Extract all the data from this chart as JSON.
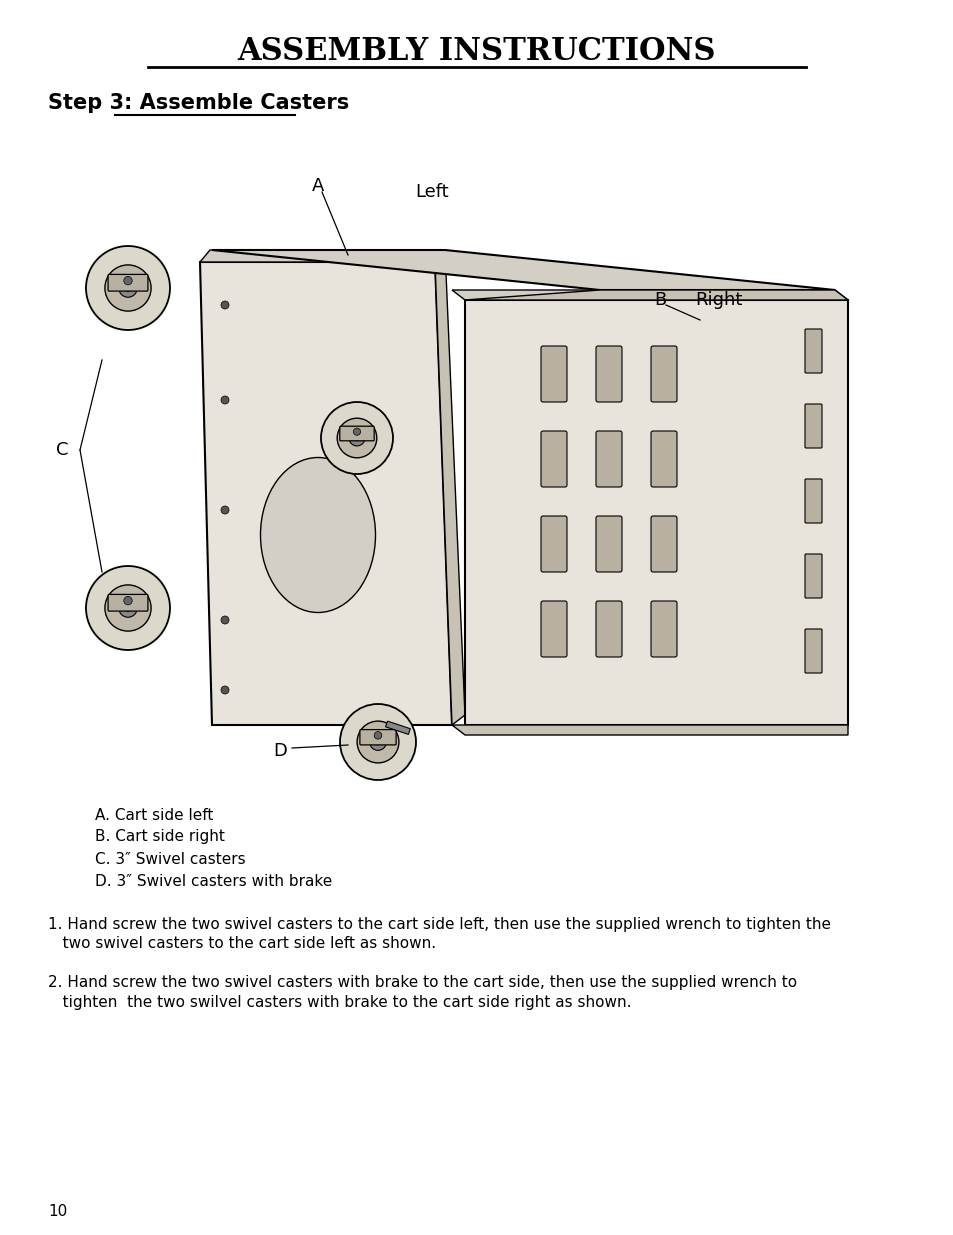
{
  "title": "ASSEMBLY INSTRUCTIONS",
  "step_heading": "Step 3: Assemble Casters",
  "parts_list": [
    "A. Cart side left",
    "B. Cart side right",
    "C. 3″ Swivel casters",
    "D. 3″ Swivel casters with brake"
  ],
  "instructions": [
    "1. Hand screw the two swivel casters to the cart side left, then use the supplied wrench to tighten the\n   two swivel casters to the cart side left as shown.",
    "2. Hand screw the two swivel casters with brake to the cart side, then use the supplied wrench to\n   tighten  the two swilvel casters with brake to the cart side right as shown."
  ],
  "page_number": "10",
  "bg_color": "#ffffff",
  "text_color": "#000000",
  "label_A": "A",
  "label_B": "B",
  "label_C": "C",
  "label_D": "D",
  "label_Left": "Left",
  "label_Right": "Right"
}
